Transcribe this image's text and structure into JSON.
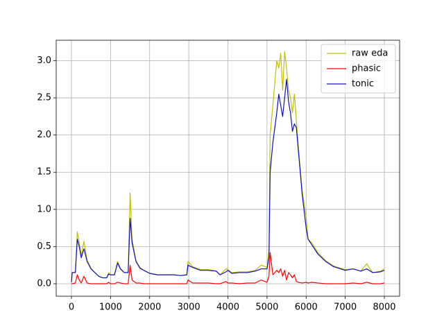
{
  "chart_data": {
    "type": "line",
    "x": [
      0,
      20,
      100,
      150,
      200,
      250,
      320,
      400,
      500,
      600,
      700,
      800,
      900,
      950,
      1000,
      1100,
      1180,
      1250,
      1350,
      1450,
      1500,
      1550,
      1650,
      1750,
      1850,
      2000,
      2200,
      2400,
      2600,
      2800,
      2950,
      2980,
      3100,
      3300,
      3500,
      3700,
      3800,
      3950,
      4000,
      4100,
      4300,
      4500,
      4700,
      4850,
      5000,
      5050,
      5080,
      5150,
      5250,
      5300,
      5350,
      5400,
      5450,
      5500,
      5550,
      5600,
      5650,
      5700,
      5750,
      5800,
      5900,
      6000,
      6050,
      6150,
      6300,
      6500,
      6700,
      7000,
      7200,
      7400,
      7550,
      7700,
      7900,
      8000
    ],
    "series": [
      {
        "name": "raw eda",
        "color": "#bfbf00",
        "values": [
          0.02,
          0.15,
          0.16,
          0.7,
          0.55,
          0.38,
          0.57,
          0.32,
          0.21,
          0.15,
          0.1,
          0.08,
          0.08,
          0.15,
          0.12,
          0.12,
          0.3,
          0.21,
          0.15,
          0.16,
          1.22,
          0.6,
          0.31,
          0.22,
          0.18,
          0.14,
          0.12,
          0.12,
          0.12,
          0.11,
          0.12,
          0.3,
          0.23,
          0.19,
          0.19,
          0.17,
          0.12,
          0.2,
          0.19,
          0.15,
          0.16,
          0.16,
          0.18,
          0.25,
          0.22,
          0.45,
          2.0,
          2.4,
          3.0,
          2.9,
          3.1,
          2.6,
          3.12,
          2.9,
          2.6,
          2.5,
          2.3,
          2.55,
          2.2,
          1.85,
          1.25,
          0.9,
          0.6,
          0.55,
          0.42,
          0.31,
          0.24,
          0.19,
          0.2,
          0.17,
          0.27,
          0.15,
          0.17,
          0.2
        ]
      },
      {
        "name": "phasic",
        "color": "#ff0000",
        "values": [
          0,
          0,
          0.01,
          0.12,
          0.05,
          0.01,
          0.1,
          0.01,
          0,
          0,
          0,
          0,
          0,
          0.02,
          0,
          0,
          0.02,
          0.01,
          0,
          0,
          0.25,
          0.05,
          0.01,
          0.01,
          0,
          0,
          0,
          0,
          0,
          0,
          0,
          0.05,
          0.01,
          0.01,
          0.01,
          0,
          0,
          0.03,
          0.01,
          0.01,
          0,
          0.01,
          0.01,
          0.05,
          0.02,
          0.1,
          0.42,
          0.12,
          0.18,
          0.15,
          0.2,
          0.1,
          0.18,
          0.05,
          0.15,
          0.12,
          0.08,
          0.12,
          0.03,
          0.02,
          0.01,
          0.02,
          0.01,
          0.02,
          0.01,
          0,
          0,
          0,
          0.01,
          0,
          0.02,
          0,
          0,
          0.01
        ]
      },
      {
        "name": "tonic",
        "color": "#1010c0",
        "values": [
          0.02,
          0.15,
          0.15,
          0.6,
          0.5,
          0.35,
          0.47,
          0.3,
          0.2,
          0.15,
          0.1,
          0.08,
          0.08,
          0.13,
          0.12,
          0.12,
          0.28,
          0.2,
          0.15,
          0.15,
          0.88,
          0.55,
          0.3,
          0.21,
          0.18,
          0.14,
          0.12,
          0.12,
          0.12,
          0.11,
          0.12,
          0.25,
          0.22,
          0.18,
          0.18,
          0.17,
          0.12,
          0.16,
          0.18,
          0.14,
          0.15,
          0.15,
          0.17,
          0.2,
          0.2,
          0.35,
          1.5,
          1.9,
          2.3,
          2.55,
          2.4,
          2.25,
          2.5,
          2.75,
          2.45,
          2.3,
          2.05,
          2.15,
          2.1,
          1.8,
          1.2,
          0.75,
          0.6,
          0.52,
          0.4,
          0.3,
          0.23,
          0.18,
          0.2,
          0.17,
          0.2,
          0.15,
          0.16,
          0.18
        ]
      }
    ],
    "xlim": [
      -390,
      8390
    ],
    "ylim": [
      -0.168,
      3.275
    ],
    "xticks": [
      0,
      1000,
      2000,
      3000,
      4000,
      5000,
      6000,
      7000,
      8000
    ],
    "yticks": [
      {
        "value": 0,
        "label": "0.0"
      },
      0.5,
      {
        "value": 1,
        "label": "1.0"
      },
      1.5,
      {
        "value": 2,
        "label": "2.0"
      },
      2.5,
      {
        "value": 3,
        "label": "3.0"
      }
    ],
    "grid": true,
    "legend": "upper right"
  }
}
